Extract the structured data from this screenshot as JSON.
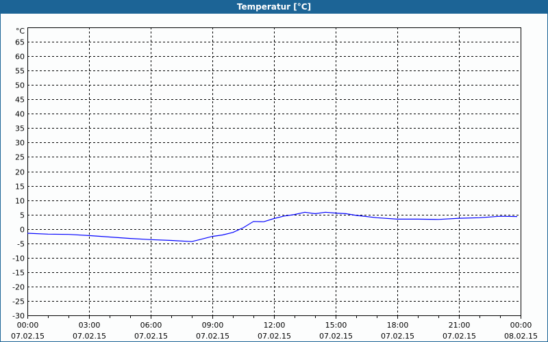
{
  "window": {
    "title": "Temperatur [°C]"
  },
  "chart_data": {
    "type": "line",
    "title": "Temperatur [°C]",
    "ylabel": "°C",
    "ylim": [
      -30,
      70
    ],
    "yticks": [
      -30,
      -25,
      -20,
      -15,
      -10,
      -5,
      0,
      5,
      10,
      15,
      20,
      25,
      30,
      35,
      40,
      45,
      50,
      55,
      60,
      65
    ],
    "xlim_hours": [
      0,
      24
    ],
    "xticks": [
      {
        "time": "00:00",
        "date": "07.02.15"
      },
      {
        "time": "03:00",
        "date": "07.02.15"
      },
      {
        "time": "06:00",
        "date": "07.02.15"
      },
      {
        "time": "09:00",
        "date": "07.02.15"
      },
      {
        "time": "12:00",
        "date": "07.02.15"
      },
      {
        "time": "15:00",
        "date": "07.02.15"
      },
      {
        "time": "18:00",
        "date": "07.02.15"
      },
      {
        "time": "21:00",
        "date": "07.02.15"
      },
      {
        "time": "00:00",
        "date": "08.02.15"
      }
    ],
    "grid": true,
    "series": [
      {
        "color": "#0000ff",
        "x": [
          "00:00",
          "01:00",
          "02:00",
          "03:00",
          "04:00",
          "05:00",
          "06:00",
          "07:00",
          "08:00",
          "08:30",
          "09:00",
          "09:30",
          "10:00",
          "10:30",
          "11:00",
          "11:30",
          "12:00",
          "12:30",
          "13:00",
          "13:30",
          "14:00",
          "14:30",
          "15:00",
          "15:30",
          "16:00",
          "17:00",
          "18:00",
          "19:00",
          "20:00",
          "21:00",
          "22:00",
          "23:00",
          "23:50"
        ],
        "values": [
          -1.5,
          -1.8,
          -1.9,
          -2.3,
          -2.8,
          -3.3,
          -3.7,
          -4.0,
          -4.4,
          -3.5,
          -2.6,
          -2.1,
          -1.2,
          0.4,
          2.6,
          2.5,
          3.6,
          4.5,
          5.0,
          5.8,
          5.3,
          5.8,
          5.5,
          5.3,
          4.7,
          3.9,
          3.4,
          3.4,
          3.3,
          3.7,
          3.9,
          4.4,
          4.3
        ]
      }
    ]
  }
}
